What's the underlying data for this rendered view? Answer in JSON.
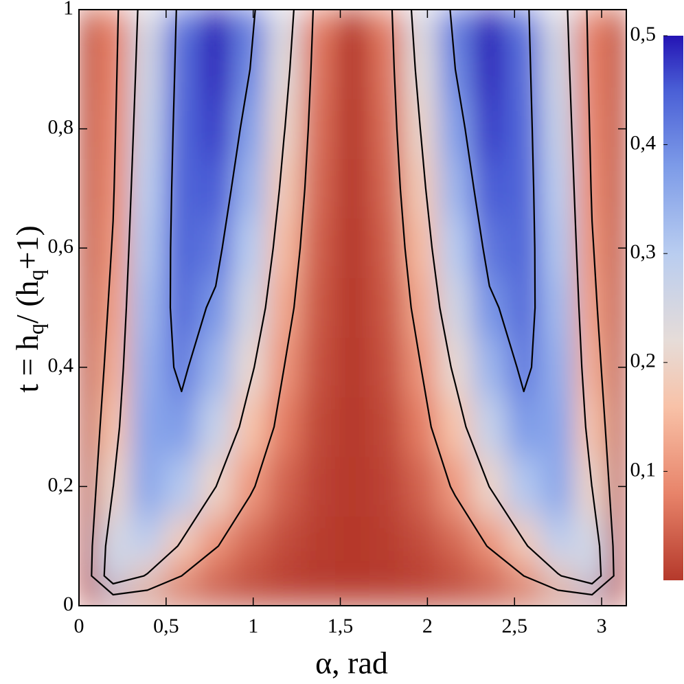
{
  "chart_data": {
    "type": "heatmap",
    "xlabel": "α, rad",
    "ylabel": [
      "t = h",
      "q",
      "/ (h",
      "q",
      "+1)"
    ],
    "x": [
      0,
      0.196,
      0.393,
      0.589,
      0.785,
      0.982,
      1.178,
      1.374,
      1.571,
      1.767,
      1.963,
      2.16,
      2.356,
      2.553,
      2.749,
      2.945,
      3.142
    ],
    "y": [
      0,
      0.05,
      0.1,
      0.2,
      0.3,
      0.4,
      0.5,
      0.6,
      0.7,
      0.8,
      0.9,
      1
    ],
    "z": [
      [
        0,
        0,
        0,
        0,
        0,
        0,
        0,
        0,
        0,
        0,
        0,
        0,
        0,
        0,
        0,
        0,
        0
      ],
      [
        0,
        0.271,
        0.192,
        0.1,
        0.05,
        0.023,
        0.009,
        0.002,
        0,
        0.002,
        0.009,
        0.023,
        0.05,
        0.1,
        0.192,
        0.271,
        0
      ],
      [
        0,
        0.256,
        0.293,
        0.188,
        0.104,
        0.052,
        0.021,
        0.005,
        0,
        0.005,
        0.021,
        0.052,
        0.104,
        0.188,
        0.293,
        0.256,
        0
      ],
      [
        0,
        0.199,
        0.36,
        0.31,
        0.201,
        0.109,
        0.046,
        0.011,
        0,
        0.011,
        0.046,
        0.109,
        0.201,
        0.31,
        0.36,
        0.199,
        0
      ],
      [
        0,
        0.162,
        0.364,
        0.378,
        0.279,
        0.164,
        0.073,
        0.018,
        0,
        0.018,
        0.073,
        0.164,
        0.279,
        0.378,
        0.364,
        0.162,
        0
      ],
      [
        0,
        0.136,
        0.349,
        0.415,
        0.339,
        0.214,
        0.1,
        0.026,
        0,
        0.026,
        0.1,
        0.214,
        0.339,
        0.415,
        0.349,
        0.136,
        0
      ],
      [
        0,
        0.118,
        0.331,
        0.434,
        0.387,
        0.26,
        0.127,
        0.033,
        0,
        0.033,
        0.127,
        0.26,
        0.387,
        0.434,
        0.331,
        0.118,
        0
      ],
      [
        0,
        0.105,
        0.312,
        0.442,
        0.423,
        0.301,
        0.152,
        0.041,
        0,
        0.041,
        0.152,
        0.301,
        0.423,
        0.442,
        0.312,
        0.105,
        0
      ],
      [
        0,
        0.094,
        0.295,
        0.443,
        0.452,
        0.338,
        0.178,
        0.049,
        0,
        0.049,
        0.178,
        0.338,
        0.452,
        0.443,
        0.295,
        0.094,
        0
      ],
      [
        0,
        0.086,
        0.278,
        0.44,
        0.472,
        0.371,
        0.203,
        0.057,
        0,
        0.057,
        0.203,
        0.371,
        0.472,
        0.44,
        0.278,
        0.086,
        0
      ],
      [
        0,
        0.079,
        0.263,
        0.434,
        0.488,
        0.4,
        0.227,
        0.065,
        0,
        0.065,
        0.227,
        0.4,
        0.488,
        0.434,
        0.263,
        0.079,
        0
      ],
      [
        0,
        0.073,
        0.25,
        0.427,
        0.5,
        0.427,
        0.25,
        0.073,
        0,
        0.073,
        0.25,
        0.427,
        0.5,
        0.427,
        0.25,
        0.073,
        0
      ]
    ],
    "contour_levels": [
      0.1,
      0.2,
      0.4
    ],
    "contour_color": "#000000",
    "colormap": [
      {
        "value": 0,
        "color": "#b5392b"
      },
      {
        "value": 0.08,
        "color": "#e8846a"
      },
      {
        "value": 0.16,
        "color": "#f8c2a8"
      },
      {
        "value": 0.22,
        "color": "#e6dcd8"
      },
      {
        "value": 0.3,
        "color": "#b9cdf0"
      },
      {
        "value": 0.38,
        "color": "#7d9be8"
      },
      {
        "value": 0.45,
        "color": "#4a5fd6"
      },
      {
        "value": 0.5,
        "color": "#2414b4"
      }
    ],
    "xlim": [
      0,
      3.1416
    ],
    "ylim": [
      0,
      1
    ],
    "xticks": [
      0,
      {
        "value": 0.5,
        "label": "0,5"
      },
      1,
      {
        "value": 1.5,
        "label": "1,5"
      },
      2,
      {
        "value": 2.5,
        "label": "2,5"
      },
      3
    ],
    "yticks": [
      0,
      {
        "value": 0.2,
        "label": "0,2"
      },
      {
        "value": 0.4,
        "label": "0,4"
      },
      {
        "value": 0.6,
        "label": "0,6"
      },
      {
        "value": 0.8,
        "label": "0,8"
      },
      1
    ],
    "colorbar": {
      "lim": [
        0,
        0.5
      ],
      "ticks": [
        {
          "value": 0.1,
          "label": "0,1"
        },
        {
          "value": 0.2,
          "label": "0,2"
        },
        {
          "value": 0.3,
          "label": "0,3"
        },
        {
          "value": 0.4,
          "label": "0,4"
        },
        {
          "value": 0.5,
          "label": "0,5"
        }
      ]
    }
  }
}
